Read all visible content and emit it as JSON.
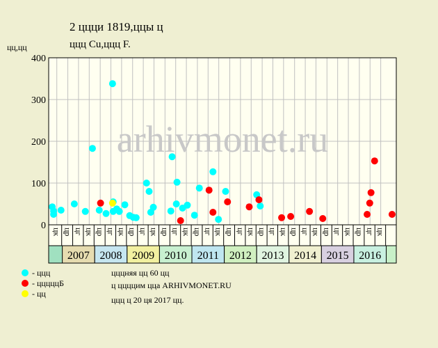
{
  "chart_data": {
    "type": "scatter",
    "title": "2 ццци 1819,ццы ц",
    "subtitle": "ццц Cu,ццц F.",
    "y_label": "цц,цц",
    "watermark": "arhivmonet.ru",
    "notes": [
      "цццняя цц 60 цц",
      "ц ццццим цца ARHIVMONET.RU",
      "ццц ц 20 ця 2017 цц."
    ],
    "xlim": [
      2006.6,
      2017.31
    ],
    "ylim": [
      0,
      400
    ],
    "yticks": [
      0,
      100,
      200,
      300,
      400
    ],
    "grid": true,
    "xticks": [
      {
        "value": 2006.83,
        "label": "цк"
      },
      {
        "value": 2007.17,
        "label": "цр"
      },
      {
        "value": 2007.5,
        "label": "цг"
      },
      {
        "value": 2007.83,
        "label": "цк"
      },
      {
        "value": 2008.17,
        "label": "цр"
      },
      {
        "value": 2008.5,
        "label": "цг"
      },
      {
        "value": 2008.83,
        "label": "цк"
      },
      {
        "value": 2009.17,
        "label": "цр"
      },
      {
        "value": 2009.5,
        "label": "цг"
      },
      {
        "value": 2009.83,
        "label": "цк"
      },
      {
        "value": 2010.17,
        "label": "цр"
      },
      {
        "value": 2010.5,
        "label": "цг"
      },
      {
        "value": 2010.83,
        "label": "цк"
      },
      {
        "value": 2011.17,
        "label": "цр"
      },
      {
        "value": 2011.5,
        "label": "цг"
      },
      {
        "value": 2011.83,
        "label": "цк"
      },
      {
        "value": 2012.17,
        "label": "цр"
      },
      {
        "value": 2012.5,
        "label": "цг"
      },
      {
        "value": 2012.83,
        "label": "цк"
      },
      {
        "value": 2013.17,
        "label": "цр"
      },
      {
        "value": 2013.5,
        "label": "цг"
      },
      {
        "value": 2013.83,
        "label": "цк"
      },
      {
        "value": 2014.17,
        "label": "цр"
      },
      {
        "value": 2014.5,
        "label": "цг"
      },
      {
        "value": 2014.83,
        "label": "цк"
      },
      {
        "value": 2015.17,
        "label": "цр"
      },
      {
        "value": 2015.5,
        "label": "цг"
      },
      {
        "value": 2015.83,
        "label": "цк"
      },
      {
        "value": 2016.17,
        "label": "цр"
      },
      {
        "value": 2016.5,
        "label": "цг"
      },
      {
        "value": 2016.83,
        "label": "цк"
      }
    ],
    "years": [
      2007,
      2008,
      2009,
      2010,
      2011,
      2012,
      2013,
      2014,
      2015,
      2016
    ],
    "year_colors": [
      "#e6dcb0",
      "#c6e6f0",
      "#f2f0a0",
      "#c8f0d0",
      "#bfe6f0",
      "#d0f0c0",
      "#e0f4e0",
      "#f0f0d0",
      "#d8d0e0",
      "#c8f0e0"
    ],
    "series": [
      {
        "name": "- ццц",
        "color": "#00ffff",
        "x": [
          2006.69,
          2006.73,
          2006.73,
          2006.96,
          2007.37,
          2007.71,
          2007.93,
          2008.14,
          2008.35,
          2008.55,
          2008.57,
          2008.57,
          2008.68,
          2008.76,
          2008.93,
          2009.08,
          2009.19,
          2009.28,
          2009.6,
          2009.68,
          2009.73,
          2009.81,
          2010.35,
          2010.39,
          2010.52,
          2010.54,
          2010.71,
          2010.86,
          2011.08,
          2011.23,
          2011.65,
          2011.82,
          2012.04,
          2013.0,
          2013.11
        ],
        "values": [
          43,
          33,
          25,
          35,
          50,
          32,
          183,
          35,
          27,
          338,
          55,
          32,
          38,
          32,
          48,
          22,
          18,
          17,
          100,
          80,
          30,
          42,
          33,
          163,
          50,
          102,
          40,
          47,
          23,
          88,
          127,
          13,
          80,
          72,
          45
        ]
      },
      {
        "name": "- цццццБ",
        "color": "#ff0000",
        "x": [
          2008.18,
          2010.65,
          2011.53,
          2011.65,
          2012.1,
          2012.77,
          2013.07,
          2013.77,
          2014.05,
          2014.63,
          2015.04,
          2016.41,
          2016.49,
          2016.53,
          2016.64,
          2017.18
        ],
        "values": [
          52,
          10,
          83,
          30,
          55,
          43,
          60,
          17,
          20,
          32,
          15,
          25,
          52,
          77,
          153,
          25
        ]
      },
      {
        "name": "- цц",
        "color": "#ffff00",
        "x": [
          2008.55
        ],
        "values": [
          52
        ]
      }
    ]
  }
}
